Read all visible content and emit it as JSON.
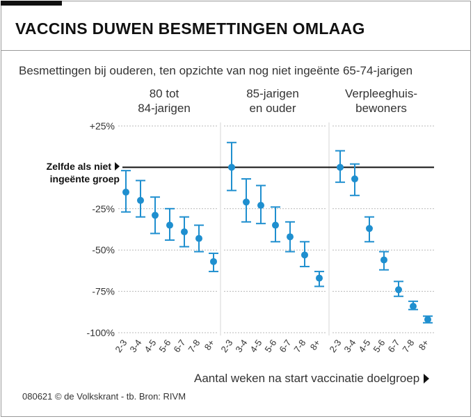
{
  "header": {
    "title": "VACCINS DUWEN BESMETTINGEN OMLAAG",
    "subtitle": "Besmettingen bij ouderen, ten opzichte van nog niet ingeënte 65-74-jarigen"
  },
  "footer": {
    "credit": "080621 © de Volkskrant - tb. Bron: RIVM"
  },
  "colors": {
    "series": "#1f8fcf",
    "grid": "#b8b8b8",
    "reference": "#111111"
  },
  "chart_data": {
    "type": "scatter",
    "subtype": "dot with error bars, small multiples",
    "xlabel": "Aantal weken na start vaccinatie doelgroep",
    "ylim": [
      -100,
      25
    ],
    "yticks": [
      25,
      0,
      -25,
      -50,
      -75,
      -100
    ],
    "ytick_labels": [
      "+25%",
      "",
      "-25%",
      "-50%",
      "-75%",
      "-100%"
    ],
    "reference_line": {
      "value": 0,
      "label_line1": "Zelfde als niet",
      "label_line2": "ingeënte groep"
    },
    "categories": [
      "2-3",
      "3-4",
      "4-5",
      "5-6",
      "6-7",
      "7-8",
      "8+"
    ],
    "panels": [
      {
        "title_line1": "80 tot",
        "title_line2": "84-jarigen",
        "values": [
          -15,
          -20,
          -29,
          -35,
          -39,
          -43,
          -57
        ],
        "lower": [
          -27,
          -30,
          -40,
          -44,
          -48,
          -51,
          -63
        ],
        "upper": [
          -2,
          -8,
          -18,
          -25,
          -30,
          -35,
          -52
        ]
      },
      {
        "title_line1": "85-jarigen",
        "title_line2": "en ouder",
        "values": [
          0,
          -21,
          -23,
          -35,
          -42,
          -53,
          -67
        ],
        "lower": [
          -14,
          -33,
          -34,
          -45,
          -51,
          -60,
          -72
        ],
        "upper": [
          15,
          -7,
          -11,
          -24,
          -33,
          -45,
          -63
        ]
      },
      {
        "title_line1": "Verpleeghuis-",
        "title_line2": "bewoners",
        "values": [
          0,
          -7,
          -37,
          -56,
          -74,
          -84,
          -92
        ],
        "lower": [
          -9,
          -17,
          -45,
          -62,
          -78,
          -86,
          -94
        ],
        "upper": [
          10,
          2,
          -30,
          -51,
          -69,
          -81,
          -90
        ]
      }
    ]
  }
}
